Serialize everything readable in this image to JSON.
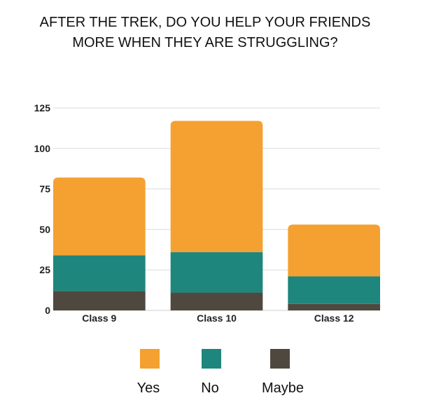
{
  "chart_data": {
    "type": "bar",
    "stacked": true,
    "title": "AFTER THE TREK, DO YOU HELP YOUR FRIENDS MORE WHEN THEY ARE STRUGGLING?",
    "title_lines": [
      "AFTER THE TREK, DO YOU HELP YOUR FRIENDS",
      "MORE WHEN THEY ARE STRUGGLING?"
    ],
    "categories": [
      "Class 9",
      "Class 10",
      "Class 12"
    ],
    "series": [
      {
        "name": "Maybe",
        "color": "#4f483e",
        "values": [
          12,
          11,
          4
        ]
      },
      {
        "name": "No",
        "color": "#1e867c",
        "values": [
          22,
          25,
          17
        ]
      },
      {
        "name": "Yes",
        "color": "#f4a131",
        "values": [
          48,
          81,
          32
        ]
      }
    ],
    "legend_order": [
      "Yes",
      "No",
      "Maybe"
    ],
    "yticks": [
      0,
      25,
      50,
      75,
      100,
      125
    ],
    "ylim": [
      0,
      125
    ],
    "grid": true,
    "legend_position": "bottom",
    "xlabel": "",
    "ylabel": ""
  }
}
